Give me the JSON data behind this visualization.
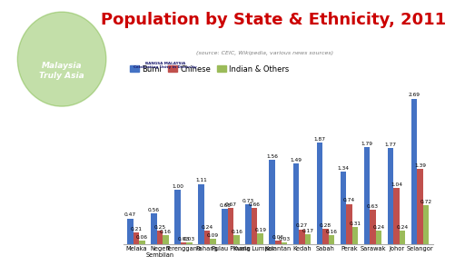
{
  "title": "Population by State & Ethnicity, 2011",
  "source_text": "(source: CEIC, Wikipedia, various news sources)",
  "categories": [
    "Melaka",
    "Negeri\nSembilan",
    "Terengganu",
    "Pahang",
    "Pulau Pinang",
    "Kuala Lumpur",
    "Kelantan",
    "Kedah",
    "Sabah",
    "Perak",
    "Sarawak",
    "Johor",
    "Selangor"
  ],
  "bumi": [
    0.47,
    0.56,
    1.0,
    1.11,
    0.65,
    0.73,
    1.56,
    1.49,
    1.87,
    1.34,
    1.79,
    1.77,
    2.69
  ],
  "chinese": [
    0.21,
    0.25,
    0.03,
    0.24,
    0.67,
    0.66,
    0.06,
    0.27,
    0.28,
    0.74,
    0.63,
    1.04,
    1.39
  ],
  "indian": [
    0.06,
    0.16,
    0.03,
    0.09,
    0.16,
    0.19,
    0.03,
    0.17,
    0.16,
    0.31,
    0.24,
    0.24,
    0.72
  ],
  "bumi_color": "#4472C4",
  "chinese_color": "#C0504D",
  "indian_color": "#9BBB59",
  "title_color": "#CC0000",
  "bg_color": "#FFFFFF",
  "legend_labels": [
    "Bumi",
    "Chinese",
    "Indian & Others"
  ],
  "ylim": [
    0,
    3.0
  ],
  "bar_width": 0.25,
  "malaysia_color": "#7B9E3E",
  "bangsa_color": "#BDD7EE",
  "blindspot_color": "#1F4E99",
  "facebook_color": "#3B5998",
  "label_fontsize": 4.2,
  "tick_fontsize": 4.8,
  "title_fontsize": 13,
  "source_fontsize": 4.5,
  "legend_fontsize": 6.0
}
